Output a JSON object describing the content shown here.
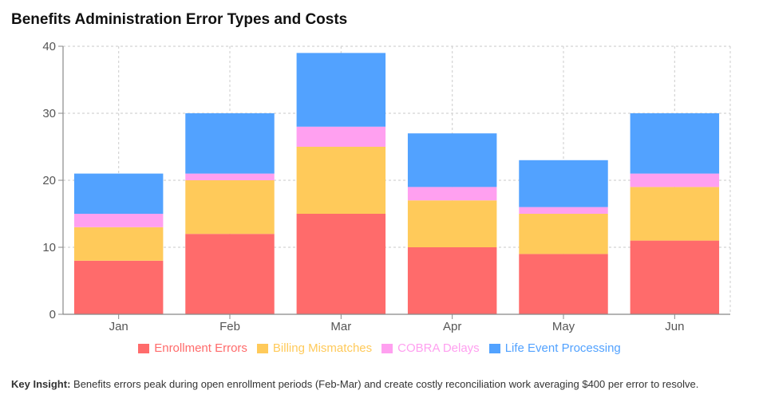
{
  "title": "Benefits Administration Error Types and Costs",
  "chart_data": {
    "type": "bar",
    "stacked": true,
    "categories": [
      "Jan",
      "Feb",
      "Mar",
      "Apr",
      "May",
      "Jun"
    ],
    "series": [
      {
        "name": "Enrollment Errors",
        "color": "#ff6b6b",
        "values": [
          8,
          12,
          15,
          10,
          9,
          11
        ]
      },
      {
        "name": "Billing Mismatches",
        "color": "#ffca5a",
        "values": [
          5,
          8,
          10,
          7,
          6,
          8
        ]
      },
      {
        "name": "COBRA Delays",
        "color": "#ffa0f0",
        "values": [
          2,
          1,
          3,
          2,
          1,
          2
        ]
      },
      {
        "name": "Life Event Processing",
        "color": "#52a2ff",
        "values": [
          6,
          9,
          11,
          8,
          7,
          9
        ]
      }
    ],
    "ylim": [
      0,
      40
    ],
    "yticks": [
      0,
      10,
      20,
      30,
      40
    ],
    "grid": true,
    "legend_position": "bottom"
  },
  "insight": {
    "label": "Key Insight:",
    "text": "Benefits errors peak during open enrollment periods (Feb-Mar) and create costly reconciliation work averaging $400 per error to resolve."
  }
}
